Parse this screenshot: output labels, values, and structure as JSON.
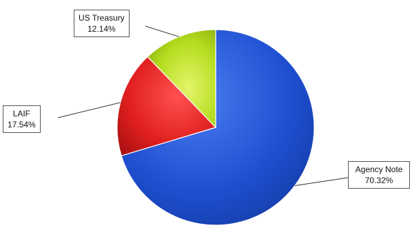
{
  "chart_data": {
    "type": "pie",
    "title": "",
    "slices": [
      {
        "label": "Agency Note",
        "value": 70.32,
        "value_label": "70.32%",
        "color": "#1f4fd1"
      },
      {
        "label": "LAIF",
        "value": 17.54,
        "value_label": "17.54%",
        "color": "#e02020"
      },
      {
        "label": "US Treasury",
        "value": 12.14,
        "value_label": "12.14%",
        "color": "#b4dc1e"
      }
    ],
    "start": "12 o'clock",
    "direction": "clockwise",
    "style": "3D-shaded",
    "legend": "none; callout labels beside slices"
  }
}
